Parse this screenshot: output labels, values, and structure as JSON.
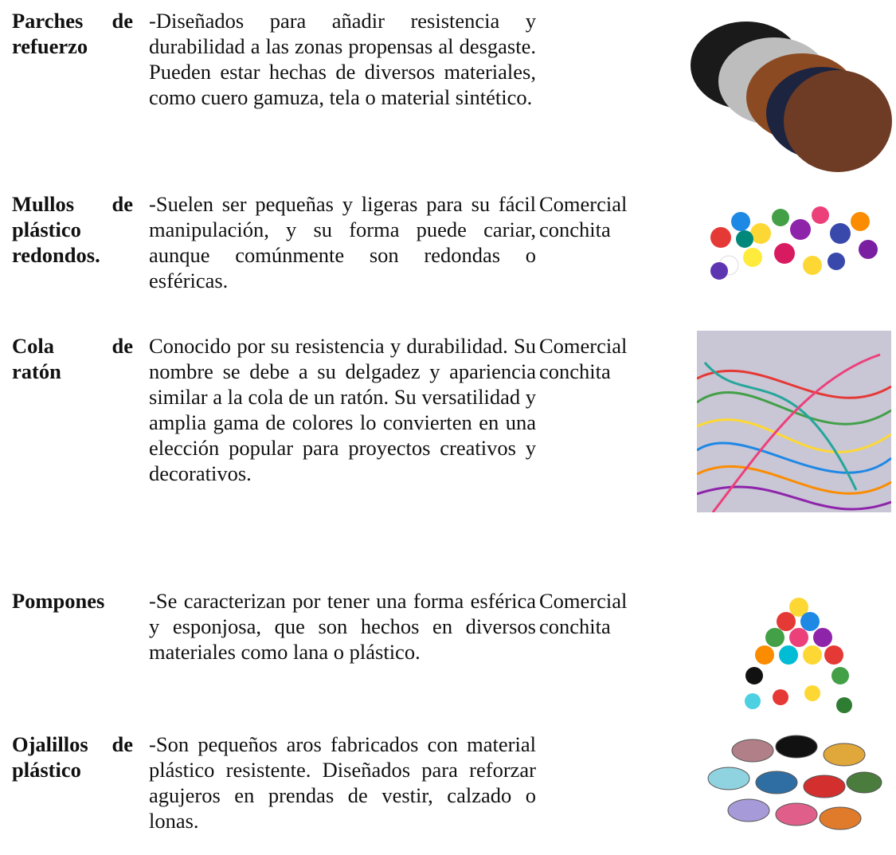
{
  "rows": [
    {
      "name": "Parches de refuerzo",
      "description": "-Diseñados para añadir resistencia y durabilidad a las zonas propensas al desgaste. Pueden estar hechas de diversos materiales, como cuero gamuza, tela o material sintético."
    },
    {
      "name": "Mullos de plástico redondos.",
      "description": "-Suelen ser pequeñas y ligeras para su fácil manipulación, y su forma puede cariar, aunque comúnmente son redondas o esféricas.",
      "supplier": "Comercial conchita"
    },
    {
      "name": "Cola de ratón",
      "description": "Conocido por su resistencia y durabilidad. Su nombre se debe a su delgadez y apariencia similar a la cola de un ratón. Su versatilidad y amplia gama de colores lo convierten en una elección popular para proyectos creativos y decorativos.",
      "supplier": "Comercial conchita"
    },
    {
      "name": "Pompones",
      "description": "-Se caracterizan por tener una forma esférica y esponjosa, que son hechos en diversos materiales como lana o plástico.",
      "supplier": "Comercial conchita"
    },
    {
      "name": "Ojalillos de plástico",
      "description": "-Son pequeños aros fabricados con material plástico resistente. Diseñados para reforzar agujeros en prendas de vestir, calzado o lonas."
    }
  ]
}
